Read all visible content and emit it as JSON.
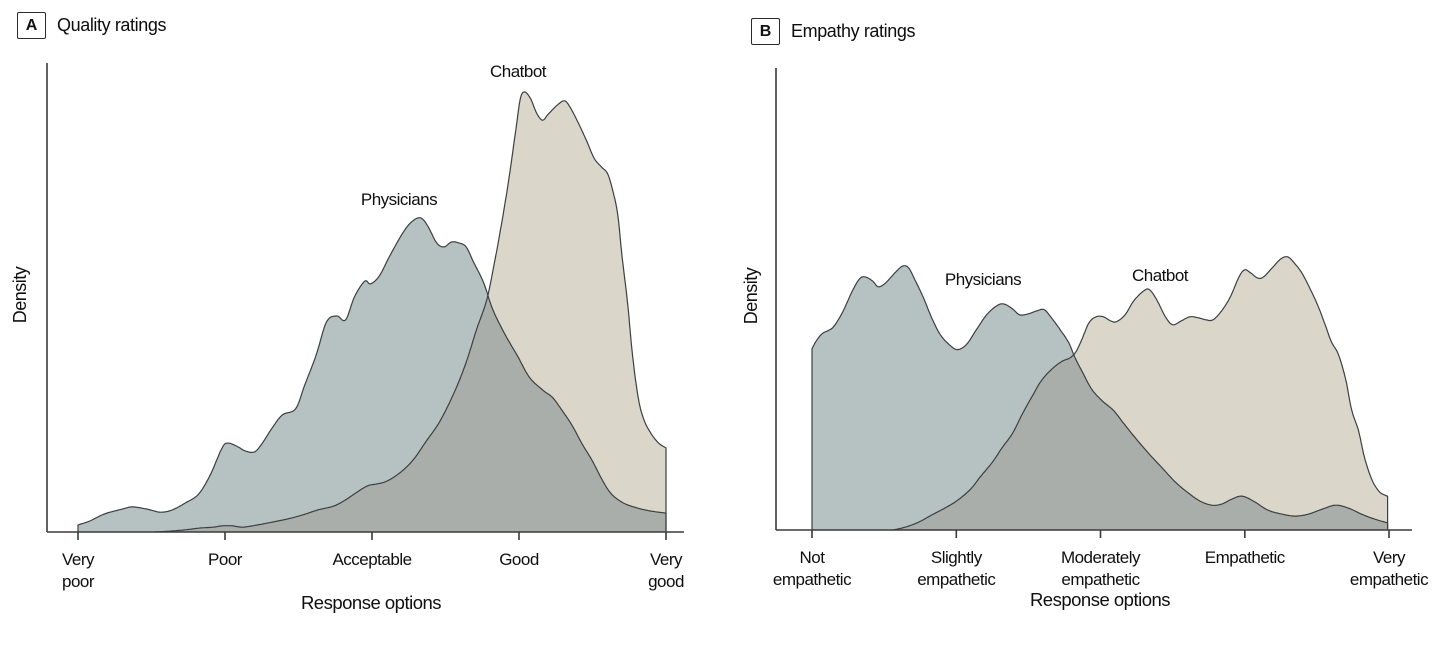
{
  "panels": [
    {
      "key": "A",
      "title": "Quality ratings"
    },
    {
      "key": "B",
      "title": "Empathy ratings"
    }
  ],
  "chart_data": [
    {
      "type": "area",
      "subtype": "overlapping-kde-density",
      "panel": "A",
      "title": "Quality ratings",
      "xlabel": "Response options",
      "ylabel": "Density",
      "categories": [
        "Very poor",
        "Poor",
        "Acceptable",
        "Good",
        "Very good"
      ],
      "x_range_units": [
        0,
        4
      ],
      "ylim": [
        0,
        1
      ],
      "grid": false,
      "legend_position": "inline-labels",
      "outline_color": "#3c3f40",
      "overlap_fill": "#a9aeaa",
      "axis_color": "#3a3a3a",
      "series": [
        {
          "name": "Physicians",
          "fill": "#b5c2c1",
          "points": [
            [
              0,
              0.016
            ],
            [
              0.08,
              0.025
            ],
            [
              0.18,
              0.041
            ],
            [
              0.3,
              0.052
            ],
            [
              0.37,
              0.057
            ],
            [
              0.47,
              0.052
            ],
            [
              0.56,
              0.045
            ],
            [
              0.64,
              0.05
            ],
            [
              0.73,
              0.066
            ],
            [
              0.82,
              0.086
            ],
            [
              0.9,
              0.13
            ],
            [
              0.98,
              0.191
            ],
            [
              1.02,
              0.202
            ],
            [
              1.08,
              0.195
            ],
            [
              1.14,
              0.184
            ],
            [
              1.2,
              0.182
            ],
            [
              1.25,
              0.2
            ],
            [
              1.32,
              0.236
            ],
            [
              1.39,
              0.266
            ],
            [
              1.48,
              0.28
            ],
            [
              1.54,
              0.332
            ],
            [
              1.62,
              0.402
            ],
            [
              1.69,
              0.477
            ],
            [
              1.76,
              0.491
            ],
            [
              1.82,
              0.482
            ],
            [
              1.88,
              0.534
            ],
            [
              1.95,
              0.57
            ],
            [
              1.99,
              0.564
            ],
            [
              2.05,
              0.582
            ],
            [
              2.12,
              0.627
            ],
            [
              2.21,
              0.68
            ],
            [
              2.27,
              0.705
            ],
            [
              2.33,
              0.714
            ],
            [
              2.38,
              0.695
            ],
            [
              2.44,
              0.657
            ],
            [
              2.49,
              0.648
            ],
            [
              2.54,
              0.659
            ],
            [
              2.59,
              0.657
            ],
            [
              2.64,
              0.648
            ],
            [
              2.69,
              0.614
            ],
            [
              2.76,
              0.566
            ],
            [
              2.82,
              0.507
            ],
            [
              2.9,
              0.452
            ],
            [
              2.99,
              0.4
            ],
            [
              3.07,
              0.352
            ],
            [
              3.16,
              0.323
            ],
            [
              3.23,
              0.305
            ],
            [
              3.3,
              0.273
            ],
            [
              3.36,
              0.243
            ],
            [
              3.43,
              0.2
            ],
            [
              3.5,
              0.161
            ],
            [
              3.57,
              0.116
            ],
            [
              3.63,
              0.086
            ],
            [
              3.71,
              0.066
            ],
            [
              3.8,
              0.055
            ],
            [
              3.89,
              0.048
            ],
            [
              4,
              0.043
            ]
          ]
        },
        {
          "name": "Chatbot",
          "fill": "#dad6ca",
          "points": [
            [
              0.52,
              0
            ],
            [
              0.63,
              0.002
            ],
            [
              0.73,
              0.005
            ],
            [
              0.83,
              0.009
            ],
            [
              0.92,
              0.011
            ],
            [
              0.98,
              0.014
            ],
            [
              1.05,
              0.014
            ],
            [
              1.12,
              0.011
            ],
            [
              1.22,
              0.016
            ],
            [
              1.33,
              0.023
            ],
            [
              1.43,
              0.03
            ],
            [
              1.53,
              0.039
            ],
            [
              1.63,
              0.05
            ],
            [
              1.74,
              0.059
            ],
            [
              1.82,
              0.073
            ],
            [
              1.9,
              0.091
            ],
            [
              1.97,
              0.105
            ],
            [
              2.03,
              0.109
            ],
            [
              2.09,
              0.114
            ],
            [
              2.15,
              0.125
            ],
            [
              2.22,
              0.143
            ],
            [
              2.29,
              0.168
            ],
            [
              2.37,
              0.207
            ],
            [
              2.45,
              0.245
            ],
            [
              2.52,
              0.289
            ],
            [
              2.59,
              0.341
            ],
            [
              2.65,
              0.395
            ],
            [
              2.71,
              0.459
            ],
            [
              2.78,
              0.527
            ],
            [
              2.83,
              0.607
            ],
            [
              2.88,
              0.698
            ],
            [
              2.93,
              0.8
            ],
            [
              2.98,
              0.918
            ],
            [
              3.01,
              0.986
            ],
            [
              3.04,
              1
            ],
            [
              3.08,
              0.984
            ],
            [
              3.12,
              0.952
            ],
            [
              3.16,
              0.936
            ],
            [
              3.2,
              0.95
            ],
            [
              3.26,
              0.97
            ],
            [
              3.31,
              0.98
            ],
            [
              3.35,
              0.964
            ],
            [
              3.4,
              0.932
            ],
            [
              3.46,
              0.889
            ],
            [
              3.51,
              0.85
            ],
            [
              3.56,
              0.83
            ],
            [
              3.6,
              0.816
            ],
            [
              3.63,
              0.786
            ],
            [
              3.67,
              0.725
            ],
            [
              3.7,
              0.63
            ],
            [
              3.74,
              0.516
            ],
            [
              3.77,
              0.409
            ],
            [
              3.81,
              0.307
            ],
            [
              3.85,
              0.255
            ],
            [
              3.9,
              0.223
            ],
            [
              3.95,
              0.202
            ],
            [
              4,
              0.191
            ]
          ]
        }
      ]
    },
    {
      "type": "area",
      "subtype": "overlapping-kde-density",
      "panel": "B",
      "title": "Empathy ratings",
      "xlabel": "Response options",
      "ylabel": "Density",
      "categories": [
        "Not empathetic",
        "Slightly empathetic",
        "Moderately empathetic",
        "Empathetic",
        "Very empathetic"
      ],
      "x_range_units": [
        0,
        4
      ],
      "ylim": [
        0,
        1
      ],
      "grid": false,
      "legend_position": "inline-labels",
      "outline_color": "#3c3f40",
      "overlap_fill": "#a9aeaa",
      "axis_color": "#3a3a3a",
      "series": [
        {
          "name": "Physicians",
          "fill": "#b5c2c1",
          "points": [
            [
              0,
              0.664
            ],
            [
              0.03,
              0.693
            ],
            [
              0.07,
              0.719
            ],
            [
              0.11,
              0.73
            ],
            [
              0.15,
              0.745
            ],
            [
              0.21,
              0.796
            ],
            [
              0.28,
              0.876
            ],
            [
              0.33,
              0.92
            ],
            [
              0.37,
              0.927
            ],
            [
              0.42,
              0.912
            ],
            [
              0.46,
              0.891
            ],
            [
              0.51,
              0.905
            ],
            [
              0.58,
              0.945
            ],
            [
              0.63,
              0.967
            ],
            [
              0.67,
              0.96
            ],
            [
              0.71,
              0.92
            ],
            [
              0.77,
              0.854
            ],
            [
              0.83,
              0.777
            ],
            [
              0.89,
              0.715
            ],
            [
              0.96,
              0.675
            ],
            [
              1.01,
              0.661
            ],
            [
              1.07,
              0.679
            ],
            [
              1.14,
              0.734
            ],
            [
              1.21,
              0.788
            ],
            [
              1.28,
              0.821
            ],
            [
              1.33,
              0.828
            ],
            [
              1.39,
              0.81
            ],
            [
              1.44,
              0.788
            ],
            [
              1.5,
              0.792
            ],
            [
              1.56,
              0.803
            ],
            [
              1.61,
              0.807
            ],
            [
              1.66,
              0.777
            ],
            [
              1.72,
              0.734
            ],
            [
              1.78,
              0.686
            ],
            [
              1.82,
              0.635
            ],
            [
              1.88,
              0.573
            ],
            [
              1.94,
              0.515
            ],
            [
              2.01,
              0.474
            ],
            [
              2.09,
              0.438
            ],
            [
              2.16,
              0.391
            ],
            [
              2.25,
              0.332
            ],
            [
              2.34,
              0.277
            ],
            [
              2.43,
              0.226
            ],
            [
              2.52,
              0.175
            ],
            [
              2.61,
              0.135
            ],
            [
              2.69,
              0.106
            ],
            [
              2.77,
              0.091
            ],
            [
              2.84,
              0.095
            ],
            [
              2.91,
              0.113
            ],
            [
              2.98,
              0.124
            ],
            [
              3.06,
              0.106
            ],
            [
              3.16,
              0.073
            ],
            [
              3.26,
              0.058
            ],
            [
              3.35,
              0.051
            ],
            [
              3.44,
              0.058
            ],
            [
              3.54,
              0.077
            ],
            [
              3.63,
              0.091
            ],
            [
              3.72,
              0.08
            ],
            [
              3.81,
              0.058
            ],
            [
              3.9,
              0.04
            ],
            [
              3.99,
              0.026
            ]
          ]
        },
        {
          "name": "Chatbot",
          "fill": "#dad6ca",
          "points": [
            [
              0.56,
              0
            ],
            [
              0.65,
              0.011
            ],
            [
              0.74,
              0.029
            ],
            [
              0.83,
              0.055
            ],
            [
              0.92,
              0.08
            ],
            [
              1.01,
              0.109
            ],
            [
              1.1,
              0.15
            ],
            [
              1.17,
              0.197
            ],
            [
              1.25,
              0.248
            ],
            [
              1.32,
              0.303
            ],
            [
              1.39,
              0.354
            ],
            [
              1.46,
              0.427
            ],
            [
              1.53,
              0.493
            ],
            [
              1.59,
              0.547
            ],
            [
              1.66,
              0.588
            ],
            [
              1.73,
              0.617
            ],
            [
              1.79,
              0.631
            ],
            [
              1.83,
              0.653
            ],
            [
              1.87,
              0.697
            ],
            [
              1.92,
              0.759
            ],
            [
              1.97,
              0.781
            ],
            [
              2.02,
              0.781
            ],
            [
              2.07,
              0.766
            ],
            [
              2.11,
              0.763
            ],
            [
              2.17,
              0.788
            ],
            [
              2.23,
              0.839
            ],
            [
              2.3,
              0.876
            ],
            [
              2.34,
              0.88
            ],
            [
              2.39,
              0.843
            ],
            [
              2.45,
              0.781
            ],
            [
              2.5,
              0.752
            ],
            [
              2.56,
              0.766
            ],
            [
              2.62,
              0.781
            ],
            [
              2.68,
              0.777
            ],
            [
              2.73,
              0.77
            ],
            [
              2.78,
              0.77
            ],
            [
              2.84,
              0.803
            ],
            [
              2.9,
              0.854
            ],
            [
              2.96,
              0.927
            ],
            [
              3,
              0.953
            ],
            [
              3.04,
              0.942
            ],
            [
              3.09,
              0.923
            ],
            [
              3.13,
              0.927
            ],
            [
              3.19,
              0.96
            ],
            [
              3.25,
              0.993
            ],
            [
              3.3,
              1
            ],
            [
              3.35,
              0.974
            ],
            [
              3.4,
              0.938
            ],
            [
              3.46,
              0.876
            ],
            [
              3.51,
              0.818
            ],
            [
              3.56,
              0.748
            ],
            [
              3.6,
              0.69
            ],
            [
              3.65,
              0.642
            ],
            [
              3.7,
              0.551
            ],
            [
              3.74,
              0.442
            ],
            [
              3.79,
              0.361
            ],
            [
              3.83,
              0.266
            ],
            [
              3.88,
              0.186
            ],
            [
              3.93,
              0.142
            ],
            [
              3.97,
              0.128
            ],
            [
              3.99,
              0.124
            ]
          ]
        }
      ]
    }
  ]
}
